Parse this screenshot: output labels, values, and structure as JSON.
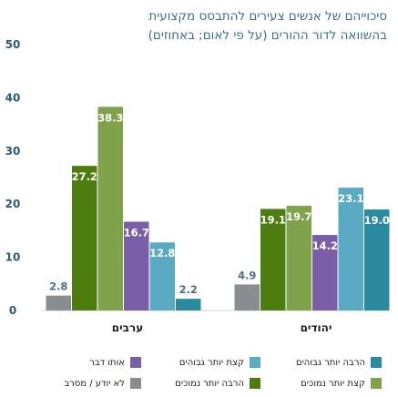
{
  "chart_data": {
    "type": "bar",
    "title_lines": [
      "סיכוייהם של אנשים צעירים להתבסס מקצועית",
      "בהשוואה לדור ההורים (על פי לאום; באחוזים)"
    ],
    "ylim": [
      0,
      50
    ],
    "yticks": [
      "0",
      "10",
      "20",
      "30",
      "40",
      "50"
    ],
    "categories": [
      "יהודים",
      "ערבים"
    ],
    "series": [
      {
        "name": "הרבה יותר גבוהים",
        "color": "#2a8a9e",
        "values": [
          19.0,
          2.2
        ],
        "labels": [
          "19.0",
          "2.2"
        ]
      },
      {
        "name": "קצת יותר גבוהים",
        "color": "#5aaac4",
        "values": [
          23.1,
          12.8
        ],
        "labels": [
          "23.1",
          "12.8"
        ]
      },
      {
        "name": "אותו דבר",
        "color": "#7a5fa8",
        "values": [
          14.2,
          16.7
        ],
        "labels": [
          "14.2",
          "16.7"
        ]
      },
      {
        "name": "קצת יותר נמוכים",
        "color": "#7fa24a",
        "values": [
          19.7,
          38.3
        ],
        "labels": [
          "19.7",
          "38.3"
        ]
      },
      {
        "name": "הרבה יותר נמוכים",
        "color": "#4e7d0f",
        "values": [
          19.1,
          27.2
        ],
        "labels": [
          "19.1",
          "27.2"
        ]
      },
      {
        "name": "לא יודע / מסרב",
        "color": "#8a8d90",
        "values": [
          4.9,
          2.8
        ],
        "labels": [
          "4.9",
          "2.8"
        ]
      }
    ],
    "grid": false,
    "legend_position": "bottom"
  }
}
